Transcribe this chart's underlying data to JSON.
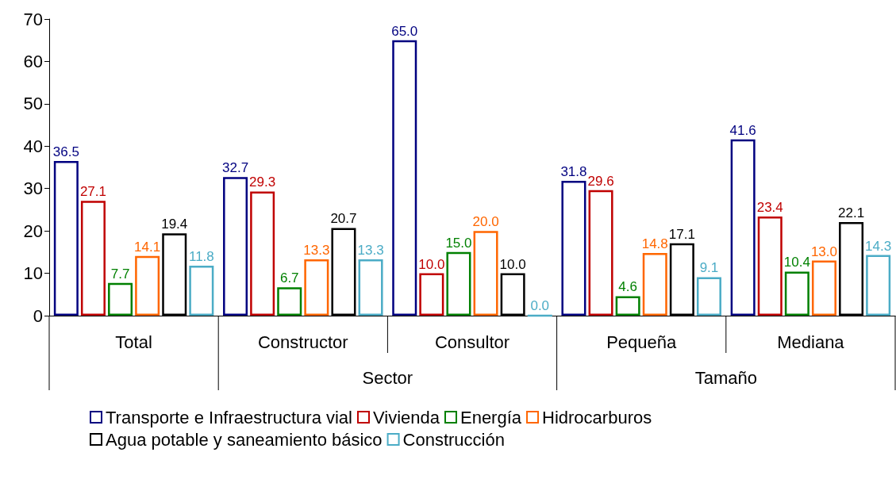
{
  "chart_data": {
    "type": "bar",
    "categories": [
      "Total",
      "Constructor",
      "Consultor",
      "Pequeña",
      "Mediana"
    ],
    "series": [
      {
        "name": "Transporte e Infraestructura vial",
        "color": "#000080",
        "values": [
          36.5,
          32.7,
          65.0,
          31.8,
          41.6
        ],
        "value_labels": [
          "36.5",
          "32.7",
          "65.0",
          "31.8",
          "41.6"
        ]
      },
      {
        "name": "Vivienda",
        "color": "#c00000",
        "values": [
          27.1,
          29.3,
          10.0,
          29.6,
          23.4
        ],
        "value_labels": [
          "27.1",
          "29.3",
          "10.0",
          "29.6",
          "23.4"
        ]
      },
      {
        "name": "Energía",
        "color": "#008000",
        "values": [
          7.7,
          6.7,
          15.0,
          4.6,
          10.4
        ],
        "value_labels": [
          "7.7",
          "6.7",
          "15.0",
          "4.6",
          "10.4"
        ]
      },
      {
        "name": "Hidrocarburos",
        "color": "#ff6600",
        "values": [
          14.1,
          13.3,
          20.0,
          14.8,
          13.0
        ],
        "value_labels": [
          "14.1",
          "13.3",
          "20.0",
          "14.8",
          "13.0"
        ]
      },
      {
        "name": "Agua potable y saneamiento básico",
        "color": "#000000",
        "values": [
          19.4,
          20.7,
          10.0,
          17.1,
          22.1
        ],
        "value_labels": [
          "19.4",
          "20.7",
          "10.0",
          "17.1",
          "22.1"
        ]
      },
      {
        "name": "Construcción",
        "color": "#4bacc6",
        "values": [
          11.8,
          13.3,
          0.0,
          9.1,
          14.3
        ],
        "value_labels": [
          "11.8",
          "13.3",
          "0.0",
          "9.1",
          "14.3"
        ]
      }
    ],
    "annotations": [
      "Sector",
      "Tamaño"
    ],
    "ylim": [
      0,
      70
    ],
    "yticks": [
      0,
      10,
      20,
      30,
      40,
      50,
      60,
      70
    ],
    "grid": false,
    "legend": "bottom"
  }
}
